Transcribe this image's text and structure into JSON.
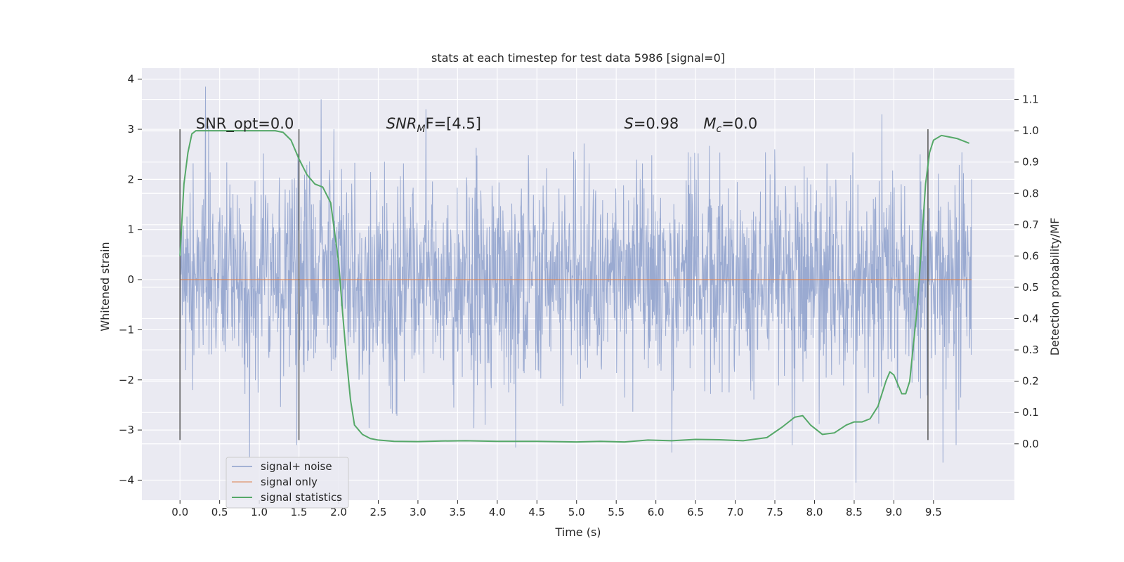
{
  "chart_data": {
    "type": "line",
    "title": "stats at each timestep for test data 5986 [signal=0]",
    "xlabel": "Time (s)",
    "ylabel": "Whitened strain",
    "y2label": "Detection probability/MF",
    "xlim": [
      -0.48,
      10.52
    ],
    "ylim": [
      -4.4,
      4.22
    ],
    "y2lim": [
      -0.18,
      1.2
    ],
    "x_ticks": [
      0.0,
      0.5,
      1.0,
      1.5,
      2.0,
      2.5,
      3.0,
      3.5,
      4.0,
      4.5,
      5.0,
      5.5,
      6.0,
      6.5,
      7.0,
      7.5,
      8.0,
      8.5,
      9.0,
      9.5
    ],
    "x_tick_labels": [
      "0.0",
      "0.5",
      "1.0",
      "1.5",
      "2.0",
      "2.5",
      "3.0",
      "3.5",
      "4.0",
      "4.5",
      "5.0",
      "5.5",
      "6.0",
      "6.5",
      "7.0",
      "7.5",
      "8.0",
      "8.5",
      "9.0",
      "9.5"
    ],
    "y_ticks": [
      -4,
      -3,
      -2,
      -1,
      0,
      1,
      2,
      3,
      4
    ],
    "y_tick_labels": [
      "−4",
      "−3",
      "−2",
      "−1",
      "0",
      "1",
      "2",
      "3",
      "4"
    ],
    "y2_ticks": [
      0.0,
      0.1,
      0.2,
      0.3,
      0.4,
      0.5,
      0.6,
      0.7,
      0.8,
      0.9,
      1.0,
      1.1
    ],
    "y2_tick_labels": [
      "0.0",
      "0.1",
      "0.2",
      "0.3",
      "0.4",
      "0.5",
      "0.6",
      "0.7",
      "0.8",
      "0.9",
      "1.0",
      "1.1"
    ],
    "grid": true,
    "legend_position": "lower-left",
    "series": [
      {
        "name": "signal+ noise",
        "axis": "left",
        "color": "#8c9fcb",
        "kind": "dense_noise",
        "x_range": [
          0.0,
          9.98
        ],
        "typical_amplitude": 1.0,
        "peaks": [
          {
            "x": 0.32,
            "y": 3.85
          },
          {
            "x": 1.78,
            "y": 3.6
          },
          {
            "x": 3.1,
            "y": 3.4
          },
          {
            "x": 0.88,
            "y": -3.55
          },
          {
            "x": 8.52,
            "y": -4.05
          },
          {
            "x": 9.62,
            "y": -3.65
          },
          {
            "x": 4.23,
            "y": -3.35
          },
          {
            "x": 6.2,
            "y": -3.45
          }
        ]
      },
      {
        "name": "signal only",
        "axis": "left",
        "color": "#dd8452",
        "x": [
          0.0,
          9.98
        ],
        "y": [
          0.0,
          0.0
        ]
      },
      {
        "name": "signal statistics",
        "axis": "right",
        "color": "#55a868",
        "x": [
          0.0,
          0.05,
          0.1,
          0.15,
          0.2,
          0.3,
          0.5,
          0.8,
          1.0,
          1.2,
          1.3,
          1.4,
          1.5,
          1.6,
          1.7,
          1.8,
          1.9,
          2.0,
          2.05,
          2.1,
          2.15,
          2.2,
          2.3,
          2.4,
          2.5,
          2.7,
          3.0,
          3.3,
          3.6,
          4.0,
          4.5,
          5.0,
          5.3,
          5.6,
          5.9,
          6.2,
          6.5,
          6.8,
          7.1,
          7.4,
          7.6,
          7.75,
          7.85,
          7.95,
          8.1,
          8.25,
          8.4,
          8.5,
          8.6,
          8.7,
          8.8,
          8.9,
          8.95,
          9.0,
          9.05,
          9.1,
          9.15,
          9.2,
          9.3,
          9.4,
          9.45,
          9.5,
          9.6,
          9.7,
          9.8,
          9.9,
          9.95
        ],
        "y": [
          0.6,
          0.83,
          0.93,
          0.99,
          1.0,
          1.0,
          1.0,
          1.0,
          1.0,
          1.0,
          0.995,
          0.97,
          0.91,
          0.86,
          0.83,
          0.82,
          0.77,
          0.58,
          0.42,
          0.27,
          0.14,
          0.06,
          0.03,
          0.017,
          0.012,
          0.008,
          0.007,
          0.009,
          0.01,
          0.008,
          0.008,
          0.006,
          0.008,
          0.006,
          0.012,
          0.01,
          0.014,
          0.013,
          0.01,
          0.02,
          0.055,
          0.085,
          0.09,
          0.06,
          0.03,
          0.035,
          0.06,
          0.07,
          0.07,
          0.08,
          0.12,
          0.2,
          0.23,
          0.22,
          0.19,
          0.16,
          0.16,
          0.2,
          0.45,
          0.83,
          0.93,
          0.97,
          0.985,
          0.98,
          0.975,
          0.965,
          0.96
        ]
      }
    ],
    "vertical_markers": [
      {
        "x": 0.0,
        "y_range": [
          -3.2,
          3.0
        ]
      },
      {
        "x": 1.5,
        "y_range": [
          -3.2,
          3.0
        ]
      },
      {
        "x": 9.43,
        "y_range": [
          -3.2,
          3.0
        ]
      }
    ],
    "annotations": [
      {
        "id": "snr-opt",
        "x": 0.2,
        "y": 3.0,
        "text": "SNR_opt=0.0",
        "math": false
      },
      {
        "id": "snr-mf",
        "x": 2.6,
        "y": 3.0,
        "text": "SNR",
        "sub": "M",
        "rest": "F=[4.5]",
        "math": true
      },
      {
        "id": "s",
        "x": 5.6,
        "y": 3.0,
        "text": "S",
        "rest": "=0.98",
        "math": true
      },
      {
        "id": "mc",
        "x": 6.6,
        "y": 3.0,
        "text": "M",
        "sub": "c",
        "rest": "=0.0",
        "math": true
      }
    ],
    "colors": {
      "plot_background": "#eaeaf2",
      "grid": "#ffffff",
      "marker_line": "#555555"
    }
  }
}
